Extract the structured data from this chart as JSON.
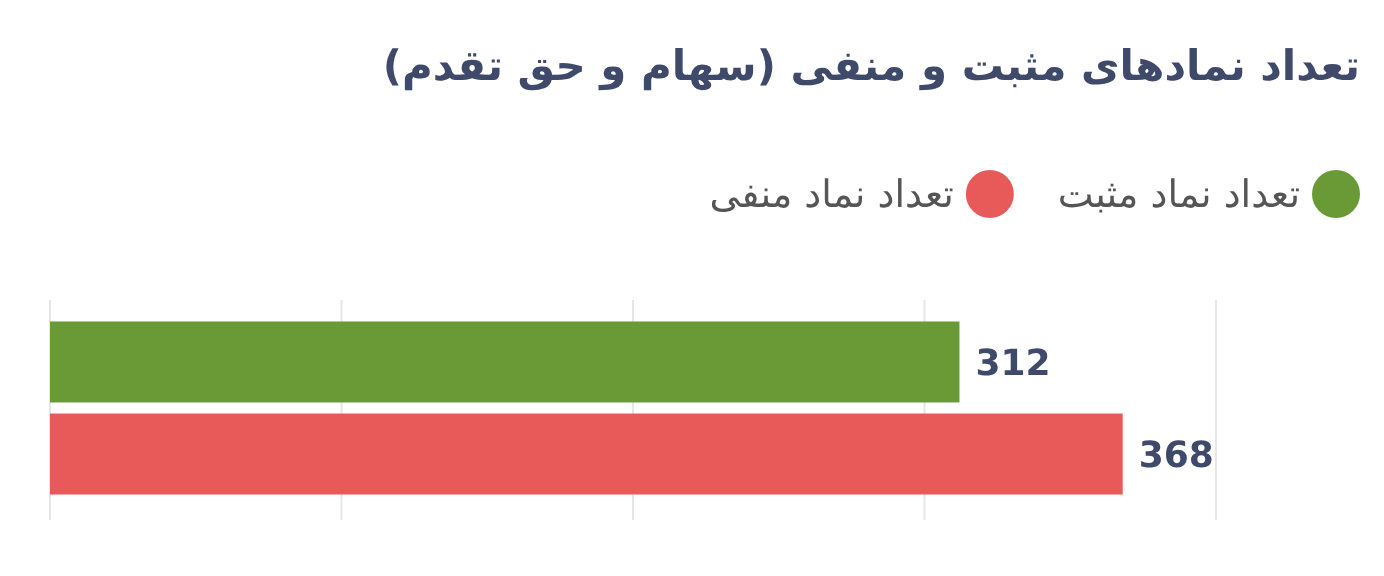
{
  "chart_data": {
    "type": "bar",
    "orientation": "horizontal",
    "title": "تعداد نمادهای مثبت و منفی (سهام و حق تقدم)",
    "categories": [
      null
    ],
    "series": [
      {
        "name": "تعداد نماد مثبت",
        "color": "#6a9a35",
        "values": [
          312
        ]
      },
      {
        "name": "تعداد نماد منفی",
        "color": "#e85a5a",
        "values": [
          368
        ]
      }
    ],
    "xlim": [
      0,
      400
    ],
    "xticks": [
      {
        "value": 0,
        "label": null
      },
      {
        "value": 100,
        "label": null
      },
      {
        "value": 200,
        "label": null
      },
      {
        "value": 300,
        "label": null
      },
      {
        "value": 400,
        "label": null
      }
    ],
    "grid": "x",
    "legend": "top",
    "data_labels": true
  }
}
